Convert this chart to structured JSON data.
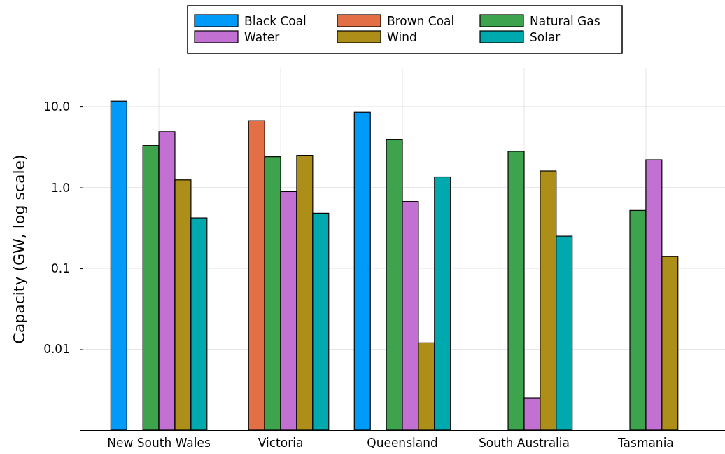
{
  "chart_data": {
    "type": "bar",
    "ylabel": "Capacity (GW, log scale)",
    "categories": [
      "New South Wales",
      "Victoria",
      "Queensland",
      "South Australia",
      "Tasmania"
    ],
    "series": [
      {
        "name": "Black Coal",
        "color": "#009af9",
        "values": [
          11.7,
          null,
          8.5,
          null,
          null
        ]
      },
      {
        "name": "Brown Coal",
        "color": "#e26f46",
        "values": [
          null,
          6.7,
          null,
          null,
          null
        ]
      },
      {
        "name": "Natural Gas",
        "color": "#3da44d",
        "values": [
          3.3,
          2.4,
          3.9,
          2.8,
          0.52
        ]
      },
      {
        "name": "Water",
        "color": "#c271d2",
        "values": [
          4.9,
          0.89,
          0.67,
          0.0025,
          2.2
        ]
      },
      {
        "name": "Wind",
        "color": "#ac8e18",
        "values": [
          1.24,
          2.5,
          0.012,
          1.6,
          0.14
        ]
      },
      {
        "name": "Solar",
        "color": "#00a9ad",
        "values": [
          0.42,
          0.48,
          1.35,
          0.25,
          null
        ]
      }
    ],
    "log": true,
    "ylim": [
      0.001,
      30
    ],
    "yticks": [
      {
        "value": 0.01,
        "label": "0.01"
      },
      {
        "value": 0.1,
        "label": "0.1"
      },
      {
        "value": 1,
        "label": "1.0"
      },
      {
        "value": 10,
        "label": "10.0"
      }
    ],
    "grid": true,
    "legend": "top"
  }
}
